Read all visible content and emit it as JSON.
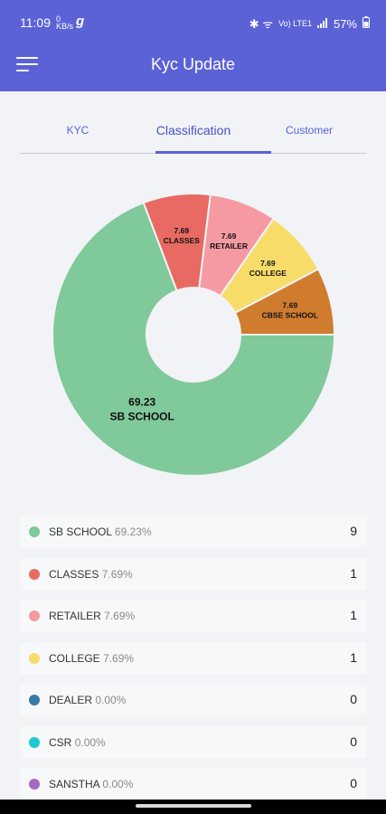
{
  "status_bar": {
    "time": "11:09",
    "speed": "0 KB/s",
    "app_letter": "g",
    "icons_text": "✱ ᯤ",
    "volte": "Vo) LTE1",
    "battery": "57%"
  },
  "header": {
    "title": "Kyc Update",
    "menu_icon": "hamburger-icon"
  },
  "tabs": [
    {
      "label": "KYC"
    },
    {
      "label": "Classification"
    },
    {
      "label": "Customer"
    }
  ],
  "chart_data": {
    "type": "pie",
    "donut": true,
    "categories": [
      "SB SCHOOL",
      "CLASSES",
      "RETAILER",
      "COLLEGE",
      "CBSE SCHOOL"
    ],
    "values": [
      69.23,
      7.69,
      7.69,
      7.69,
      7.69
    ],
    "value_labels": [
      "69.23",
      "7.69",
      "7.69",
      "7.69",
      "7.69"
    ],
    "colors": [
      "#80c99a",
      "#e86a62",
      "#f59aa2",
      "#f8dc6a",
      "#d07c2e"
    ]
  },
  "legend": [
    {
      "name": "SB SCHOOL",
      "pct": "69.23%",
      "count": "9",
      "color": "#80c99a"
    },
    {
      "name": "CLASSES",
      "pct": "7.69%",
      "count": "1",
      "color": "#e86a62"
    },
    {
      "name": "RETAILER",
      "pct": "7.69%",
      "count": "1",
      "color": "#f59aa2"
    },
    {
      "name": "COLLEGE",
      "pct": "7.69%",
      "count": "1",
      "color": "#f8dc6a"
    },
    {
      "name": "DEALER",
      "pct": "0.00%",
      "count": "0",
      "color": "#3a78a8"
    },
    {
      "name": "CSR",
      "pct": "0.00%",
      "count": "0",
      "color": "#1cc8d3"
    },
    {
      "name": "SANSTHA",
      "pct": "0.00%",
      "count": "0",
      "color": "#a46ac4"
    }
  ]
}
